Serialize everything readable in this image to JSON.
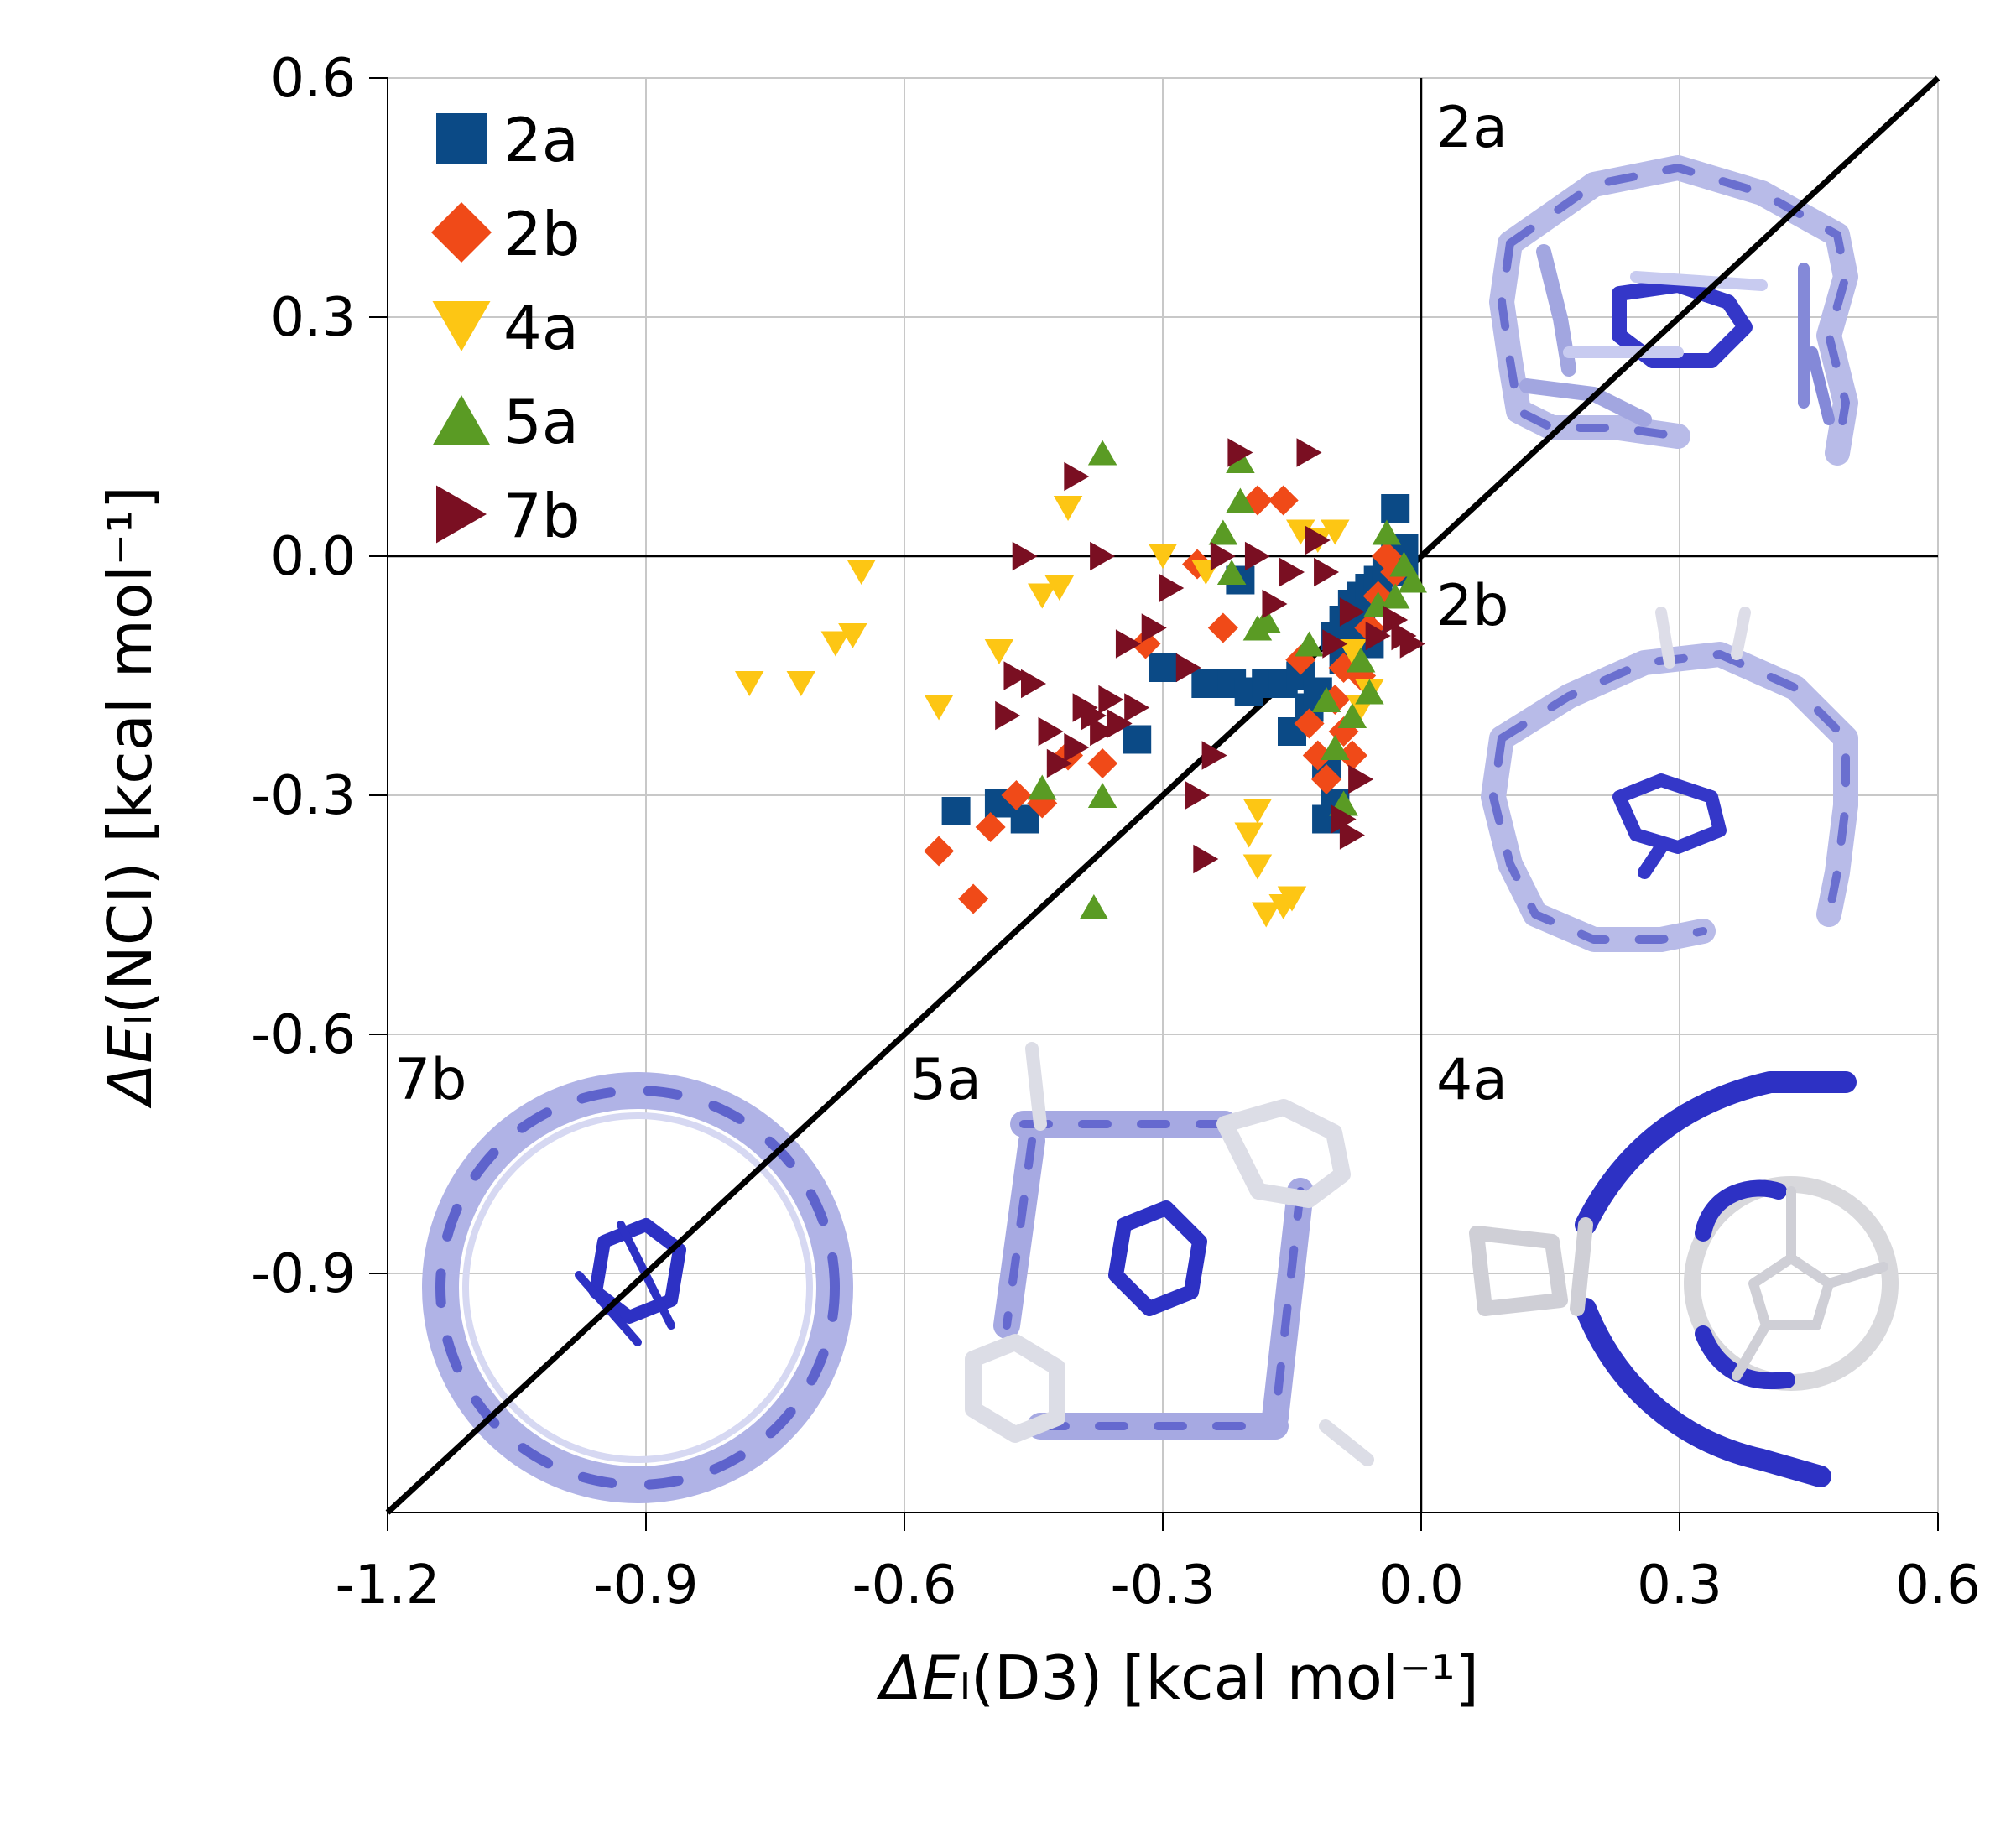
{
  "chart_data": {
    "type": "scatter",
    "title": "",
    "xlabel": {
      "prefix": "ΔE",
      "sub": "I",
      "suffix": "(D3)",
      "unit": "[kcal mol⁻¹]"
    },
    "ylabel": {
      "prefix": "ΔE",
      "sub": "I",
      "suffix": "(NCI)",
      "unit": "[kcal mol⁻¹]"
    },
    "xlim": [
      -1.2,
      0.6
    ],
    "ylim": [
      -1.2,
      0.6
    ],
    "xticks": [
      "-1.2",
      "-0.9",
      "-0.6",
      "-0.3",
      "0.0",
      "0.3",
      "0.6"
    ],
    "yticks": [
      "0.6",
      "0.3",
      "0.0",
      "-0.3",
      "-0.6",
      "-0.9"
    ],
    "grid": true,
    "legend_position": "top-left",
    "reference_line": "y = x",
    "panel_labels": [
      "2a",
      "2b",
      "7b",
      "5a",
      "4a"
    ],
    "series": [
      {
        "name": "2a",
        "marker": "square",
        "color": "#0b4a86",
        "points": [
          [
            -0.54,
            -0.32
          ],
          [
            -0.49,
            -0.31
          ],
          [
            -0.46,
            -0.33
          ],
          [
            -0.33,
            -0.23
          ],
          [
            -0.3,
            -0.14
          ],
          [
            -0.25,
            -0.16
          ],
          [
            -0.22,
            -0.16
          ],
          [
            -0.21,
            -0.03
          ],
          [
            -0.2,
            -0.17
          ],
          [
            -0.18,
            -0.16
          ],
          [
            -0.16,
            -0.16
          ],
          [
            -0.14,
            -0.15
          ],
          [
            -0.15,
            -0.22
          ],
          [
            -0.13,
            -0.19
          ],
          [
            -0.12,
            -0.17
          ],
          [
            -0.11,
            -0.26
          ],
          [
            -0.1,
            -0.31
          ],
          [
            -0.11,
            -0.33
          ],
          [
            -0.1,
            -0.1
          ],
          [
            -0.09,
            -0.08
          ],
          [
            -0.08,
            -0.06
          ],
          [
            -0.07,
            -0.05
          ],
          [
            -0.06,
            -0.04
          ],
          [
            -0.05,
            -0.03
          ],
          [
            -0.04,
            -0.02
          ],
          [
            -0.03,
            0.0
          ],
          [
            -0.03,
            0.06
          ],
          [
            -0.02,
            0.01
          ],
          [
            -0.02,
            -0.02
          ],
          [
            -0.07,
            -0.09
          ],
          [
            -0.06,
            -0.11
          ],
          [
            -0.09,
            -0.13
          ]
        ]
      },
      {
        "name": "2b",
        "marker": "diamond",
        "color": "#f04a18",
        "points": [
          [
            -0.56,
            -0.37
          ],
          [
            -0.52,
            -0.43
          ],
          [
            -0.5,
            -0.34
          ],
          [
            -0.47,
            -0.3
          ],
          [
            -0.44,
            -0.31
          ],
          [
            -0.41,
            -0.25
          ],
          [
            -0.37,
            -0.26
          ],
          [
            -0.32,
            -0.11
          ],
          [
            -0.26,
            -0.01
          ],
          [
            -0.23,
            -0.09
          ],
          [
            -0.19,
            0.07
          ],
          [
            -0.16,
            0.07
          ],
          [
            -0.14,
            -0.13
          ],
          [
            -0.13,
            -0.21
          ],
          [
            -0.12,
            -0.25
          ],
          [
            -0.11,
            -0.28
          ],
          [
            -0.1,
            -0.18
          ],
          [
            -0.09,
            -0.22
          ],
          [
            -0.09,
            -0.14
          ],
          [
            -0.08,
            -0.25
          ],
          [
            -0.07,
            -0.15
          ],
          [
            -0.06,
            -0.09
          ],
          [
            -0.05,
            -0.05
          ],
          [
            -0.04,
            0.0
          ],
          [
            -0.03,
            -0.02
          ]
        ]
      },
      {
        "name": "4a",
        "marker": "triangle-down",
        "color": "#fdc614",
        "points": [
          [
            -0.78,
            -0.16
          ],
          [
            -0.72,
            -0.16
          ],
          [
            -0.68,
            -0.11
          ],
          [
            -0.66,
            -0.1
          ],
          [
            -0.65,
            -0.02
          ],
          [
            -0.56,
            -0.19
          ],
          [
            -0.49,
            -0.12
          ],
          [
            -0.44,
            -0.05
          ],
          [
            -0.42,
            -0.04
          ],
          [
            -0.41,
            0.06
          ],
          [
            -0.3,
            0.0
          ],
          [
            -0.25,
            -0.02
          ],
          [
            -0.2,
            -0.35
          ],
          [
            -0.19,
            -0.32
          ],
          [
            -0.19,
            -0.39
          ],
          [
            -0.18,
            -0.45
          ],
          [
            -0.16,
            -0.44
          ],
          [
            -0.15,
            -0.43
          ],
          [
            -0.14,
            0.03
          ],
          [
            -0.12,
            0.02
          ],
          [
            -0.1,
            0.03
          ],
          [
            -0.08,
            -0.12
          ],
          [
            -0.07,
            -0.19
          ],
          [
            -0.06,
            -0.17
          ]
        ]
      },
      {
        "name": "5a",
        "marker": "triangle-up",
        "color": "#5a9b24",
        "points": [
          [
            -0.38,
            -0.44
          ],
          [
            -0.37,
            -0.3
          ],
          [
            -0.44,
            -0.29
          ],
          [
            -0.37,
            0.13
          ],
          [
            -0.21,
            0.12
          ],
          [
            -0.23,
            0.03
          ],
          [
            -0.22,
            -0.02
          ],
          [
            -0.21,
            0.07
          ],
          [
            -0.19,
            -0.09
          ],
          [
            -0.18,
            -0.08
          ],
          [
            -0.13,
            -0.11
          ],
          [
            -0.11,
            -0.18
          ],
          [
            -0.1,
            -0.24
          ],
          [
            -0.09,
            -0.31
          ],
          [
            -0.08,
            -0.2
          ],
          [
            -0.07,
            -0.13
          ],
          [
            -0.06,
            -0.17
          ],
          [
            -0.05,
            -0.06
          ],
          [
            -0.04,
            0.03
          ],
          [
            -0.03,
            -0.05
          ],
          [
            -0.02,
            -0.01
          ],
          [
            -0.01,
            -0.03
          ]
        ]
      },
      {
        "name": "7b",
        "marker": "triangle-right",
        "color": "#7a0f22",
        "points": [
          [
            -0.47,
            -0.15
          ],
          [
            -0.48,
            -0.2
          ],
          [
            -0.45,
            -0.16
          ],
          [
            -0.43,
            -0.22
          ],
          [
            -0.42,
            -0.26
          ],
          [
            -0.4,
            -0.24
          ],
          [
            -0.39,
            -0.19
          ],
          [
            -0.38,
            -0.2
          ],
          [
            -0.37,
            -0.22
          ],
          [
            -0.36,
            -0.18
          ],
          [
            -0.35,
            -0.21
          ],
          [
            -0.33,
            -0.19
          ],
          [
            -0.34,
            -0.11
          ],
          [
            -0.31,
            -0.09
          ],
          [
            -0.29,
            -0.04
          ],
          [
            -0.27,
            -0.14
          ],
          [
            -0.26,
            -0.3
          ],
          [
            -0.25,
            -0.38
          ],
          [
            -0.24,
            -0.25
          ],
          [
            -0.23,
            0.0
          ],
          [
            -0.21,
            0.13
          ],
          [
            -0.19,
            0.0
          ],
          [
            -0.17,
            -0.06
          ],
          [
            -0.15,
            -0.02
          ],
          [
            -0.13,
            0.13
          ],
          [
            -0.12,
            0.02
          ],
          [
            -0.11,
            -0.02
          ],
          [
            -0.1,
            -0.11
          ],
          [
            -0.09,
            -0.33
          ],
          [
            -0.08,
            -0.35
          ],
          [
            -0.08,
            -0.07
          ],
          [
            -0.07,
            -0.28
          ],
          [
            -0.05,
            -0.1
          ],
          [
            -0.03,
            -0.08
          ],
          [
            -0.02,
            -0.1
          ],
          [
            -0.01,
            -0.11
          ],
          [
            -0.4,
            0.1
          ],
          [
            -0.46,
            0.0
          ],
          [
            -0.37,
            0.0
          ]
        ]
      }
    ]
  }
}
